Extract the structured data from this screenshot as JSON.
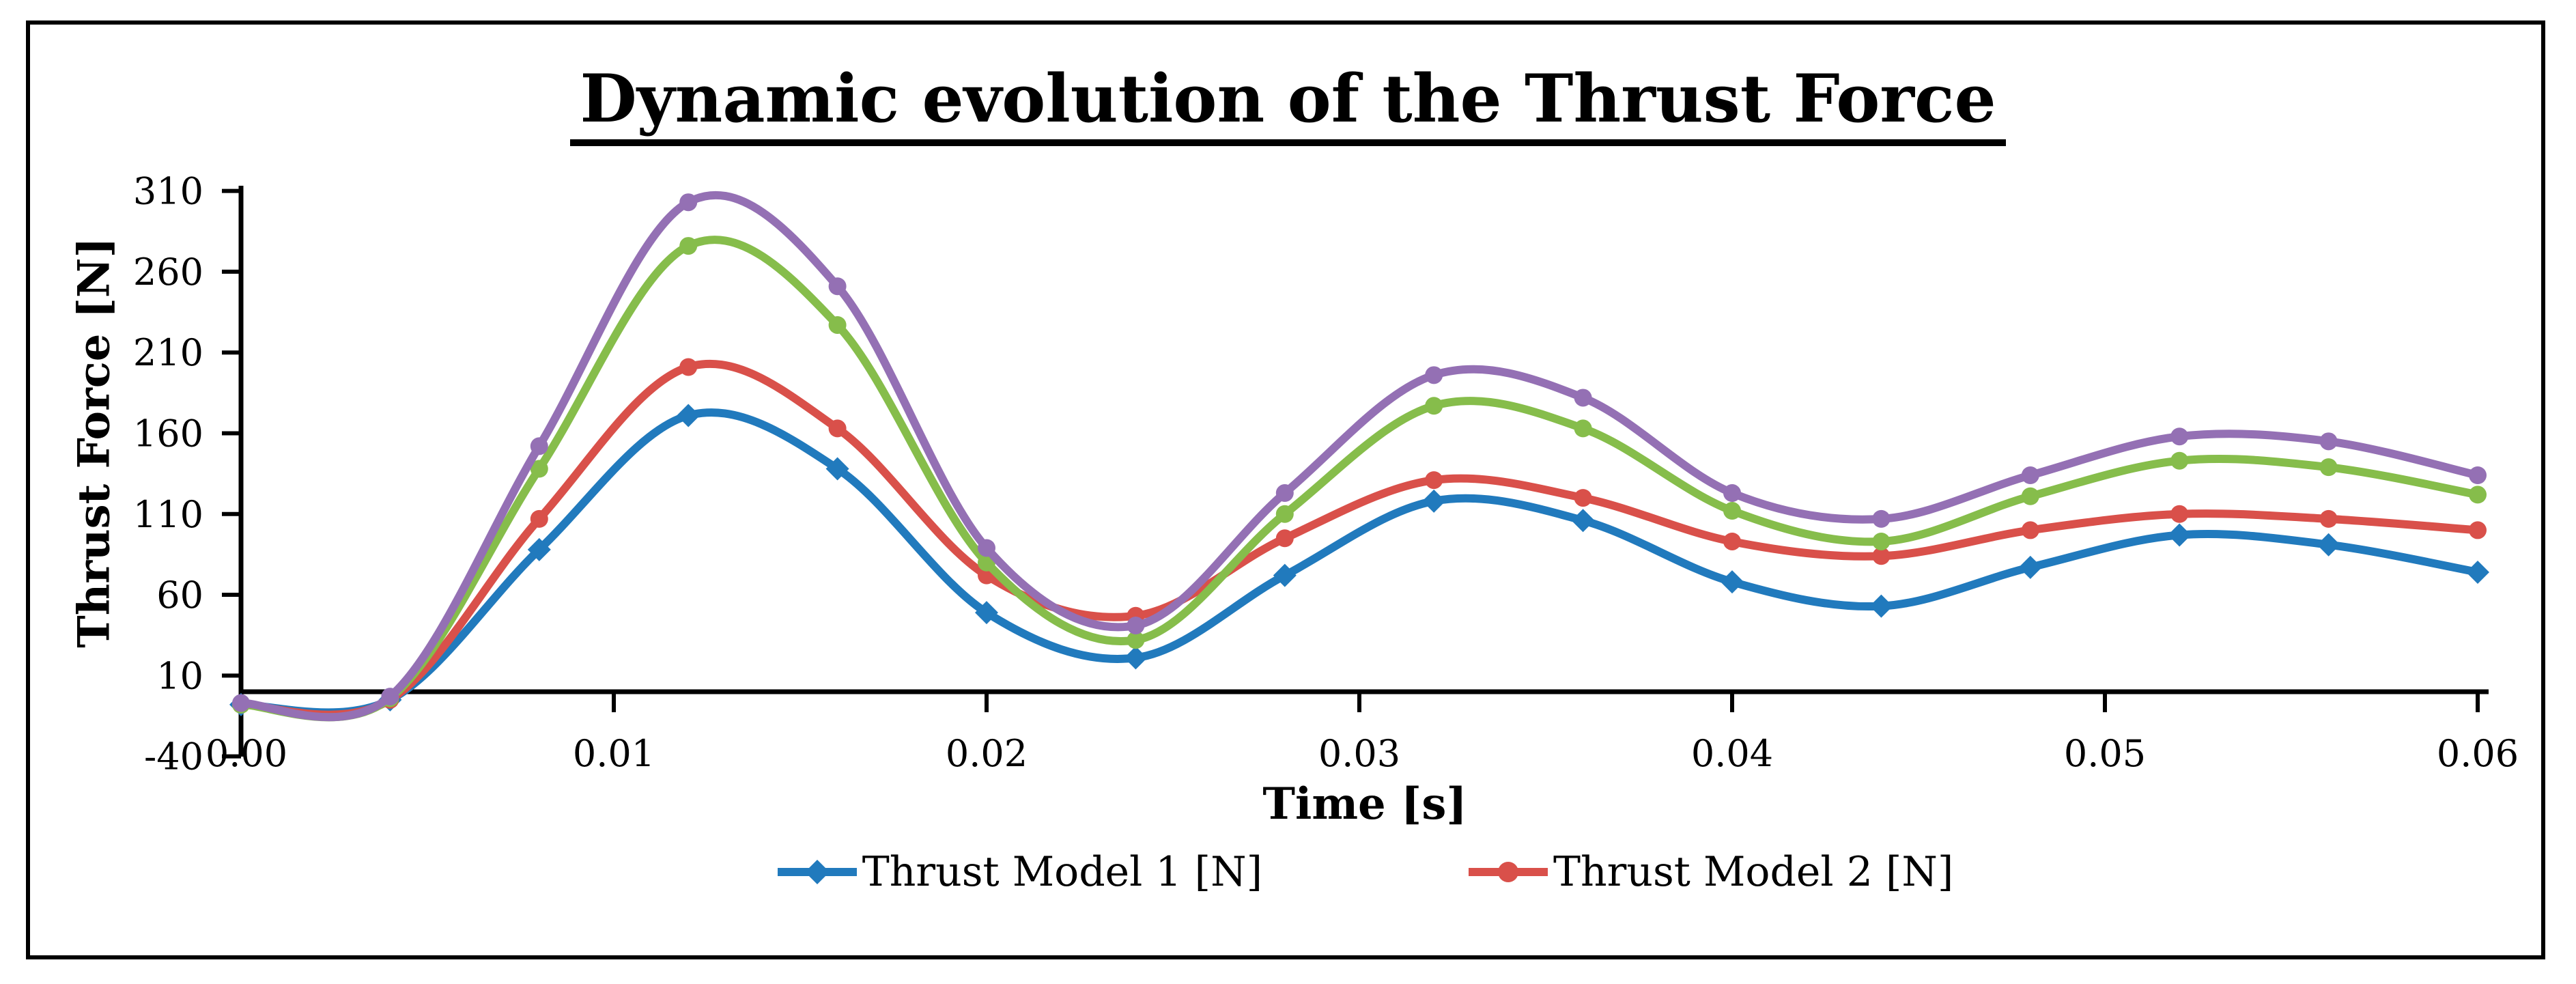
{
  "figure": {
    "background": "#ffffff",
    "border_color": "#000000",
    "axis_color": "#000000",
    "text_color": "#000000"
  },
  "chart_data": {
    "type": "line",
    "title": "Dynamic evolution of the Thrust Force",
    "title_underlined": true,
    "xlabel": "Time [s]",
    "ylabel": "Thrust Force [N]",
    "grid": false,
    "legend_position": "bottom-center",
    "xlim": [
      0,
      0.06
    ],
    "ylim": [
      -40,
      310
    ],
    "xticks": [
      0,
      0.01,
      0.02,
      0.03,
      0.04,
      0.05,
      0.06
    ],
    "xtick_labels": [
      "0.00",
      "0.01",
      "0.02",
      "0.03",
      "0.04",
      "0.05",
      "0.06"
    ],
    "yticks": [
      310,
      260,
      210,
      160,
      110,
      60,
      10,
      -40
    ],
    "ytick_labels": [
      "310",
      "260",
      "210",
      "160",
      "110",
      "60",
      "10",
      "-40"
    ],
    "x": [
      0.0,
      0.004,
      0.008,
      0.012,
      0.016,
      0.02,
      0.024,
      0.028,
      0.032,
      0.036,
      0.04,
      0.044,
      0.048,
      0.052,
      0.056,
      0.06
    ],
    "series": [
      {
        "name": "Thrust Model 1 [N]",
        "color": "#217ABD",
        "marker": "diamond",
        "in_legend": true,
        "values": [
          -8,
          -5,
          88,
          171,
          138,
          49,
          21,
          72,
          118,
          106,
          68,
          53,
          77,
          97,
          91,
          74
        ]
      },
      {
        "name": "Thrust Model 2 [N]",
        "color": "#D9504A",
        "marker": "circle",
        "in_legend": true,
        "values": [
          -8,
          -5,
          107,
          201,
          163,
          72,
          47,
          95,
          131,
          120,
          93,
          84,
          100,
          110,
          107,
          100
        ]
      },
      {
        "name": null,
        "color": "#86BD4B",
        "marker": "circle",
        "in_legend": false,
        "values": [
          -8,
          -4,
          138,
          276,
          227,
          80,
          32,
          110,
          177,
          163,
          112,
          93,
          121,
          143,
          139,
          122
        ]
      },
      {
        "name": null,
        "color": "#9470B4",
        "marker": "circle",
        "in_legend": false,
        "values": [
          -7,
          -3,
          152,
          303,
          251,
          89,
          41,
          123,
          196,
          182,
          123,
          107,
          134,
          158,
          155,
          134
        ]
      }
    ]
  }
}
